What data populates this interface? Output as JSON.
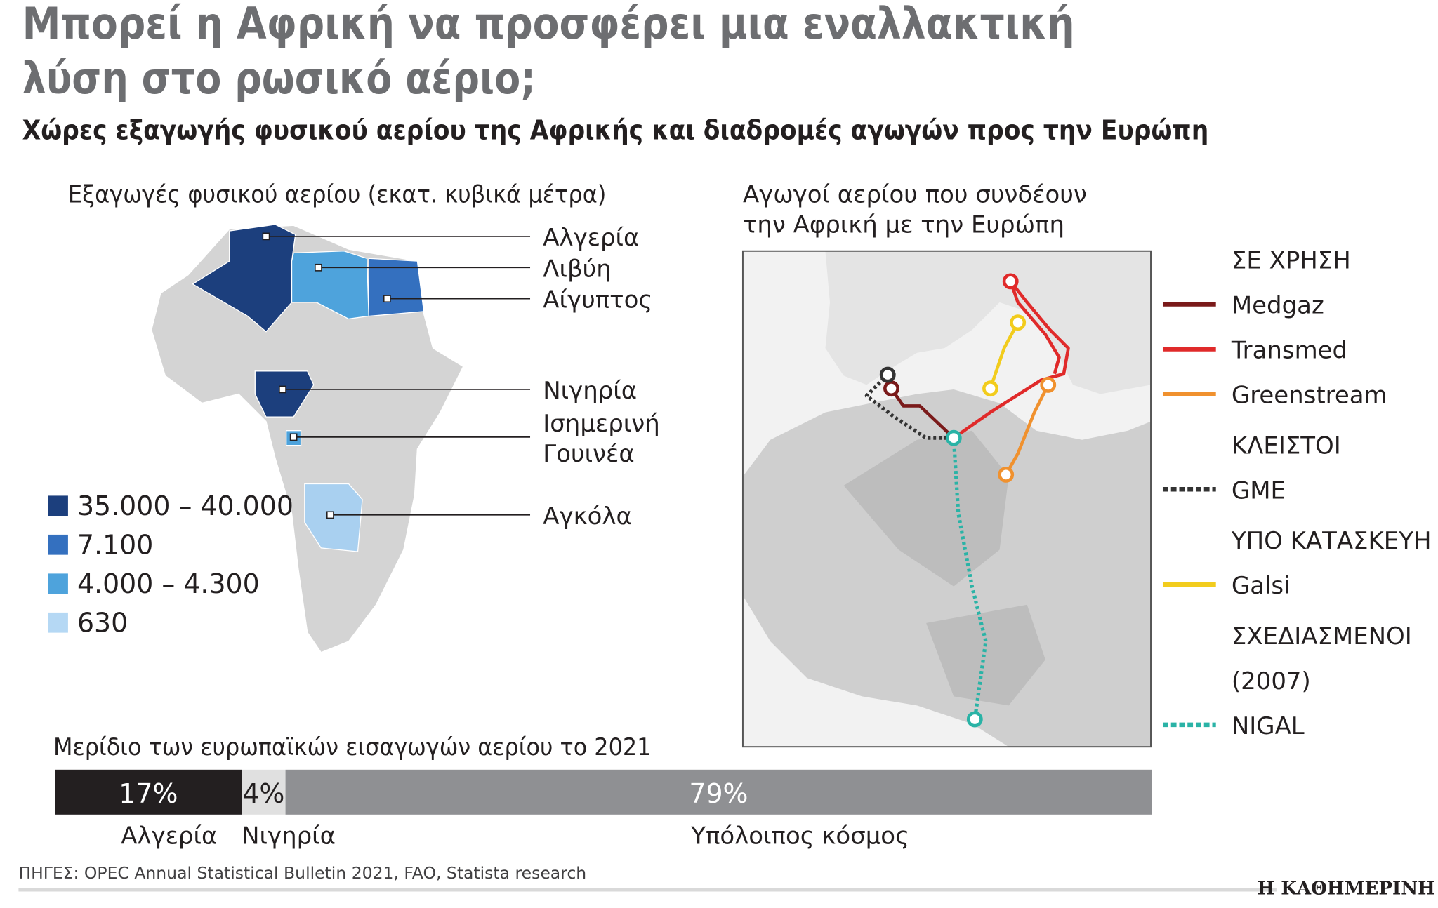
{
  "title_lines": [
    "Μπορεί η Αφρική να προσφέρει μια εναλλακτική",
    "λύση στο ρωσικό αέριο;"
  ],
  "subtitle": "Χώρες εξαγωγής φυσικού αερίου της Αφρικής και διαδρομές αγωγών προς την Ευρώπη",
  "exports_map": {
    "title": "Εξαγωγές φυσικού αερίου (εκατ. κυβικά μέτρα)",
    "countries": [
      {
        "label_lines": [
          "Αλγερία"
        ],
        "color": "#1c3f7d"
      },
      {
        "label_lines": [
          "Λιβύη"
        ],
        "color": "#4ea3dc"
      },
      {
        "label_lines": [
          "Αίγυπτος"
        ],
        "color": "#3470bf"
      },
      {
        "label_lines": [
          "Νιγηρία"
        ],
        "color": "#1c3f7d"
      },
      {
        "label_lines": [
          "Ισημερινή",
          "Γουινέα"
        ],
        "color": "#4ea3dc"
      },
      {
        "label_lines": [
          "Αγκόλα"
        ],
        "color": "#a9d0f0"
      }
    ],
    "legend": [
      {
        "label": "35.000 – 40.000",
        "color": "#1c3f7d"
      },
      {
        "label": "7.100",
        "color": "#3470bf"
      },
      {
        "label": "4.000 – 4.300",
        "color": "#4ea3dc"
      },
      {
        "label": "630",
        "color": "#b5d8f4"
      }
    ]
  },
  "pipelines_map": {
    "title_lines": [
      "Αγωγοί αερίου που συνδέουν",
      "την Αφρική με την Ευρώπη"
    ],
    "groups": [
      {
        "status_lines": [
          "ΣΕ ΧΡΗΣΗ"
        ],
        "pipelines": [
          {
            "name": "Medgaz",
            "color": "#7a1a1a",
            "dashed": false
          },
          {
            "name": "Transmed",
            "color": "#e02a2a",
            "dashed": false
          },
          {
            "name": "Greenstream",
            "color": "#f0912e",
            "dashed": false
          }
        ]
      },
      {
        "status_lines": [
          "ΚΛΕΙΣΤΟΙ"
        ],
        "pipelines": [
          {
            "name": "GME",
            "color": "#333333",
            "dashed": true
          }
        ]
      },
      {
        "status_lines": [
          "ΥΠΟ ΚΑΤΑΣΚΕΥΗ"
        ],
        "pipelines": [
          {
            "name": "Galsi",
            "color": "#f2cc1d",
            "dashed": false
          }
        ]
      },
      {
        "status_lines": [
          "ΣΧΕΔΙΑΣΜΕΝΟΙ",
          "(2007)"
        ],
        "pipelines": [
          {
            "name": "NIGAL",
            "color": "#2ab3a6",
            "dashed": true
          }
        ]
      }
    ]
  },
  "chart_data": {
    "type": "bar",
    "title": "Μερίδιο των ευρωπαϊκών εισαγωγών αερίου το 2021",
    "categories": [
      "Αλγερία",
      "Νιγηρία",
      "Υπόλοιπος κόσμος"
    ],
    "values": [
      17,
      4,
      79
    ],
    "value_labels": [
      "17%",
      "4%",
      "79%"
    ],
    "colors": [
      "#231f20",
      "#e0e0e0",
      "#8f9093"
    ]
  },
  "source": "ΠΗΓΕΣ: OPEC Annual Statistical Bulletin 2021, FAO, Statista research",
  "brand": "Η ΚΑΘΗΜΕΡΙΝΗ"
}
